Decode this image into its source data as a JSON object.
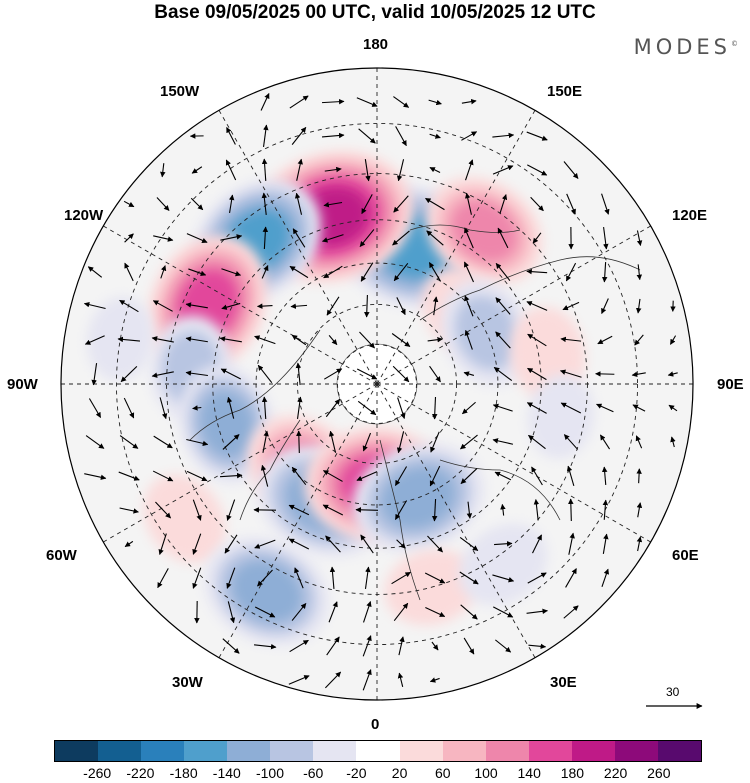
{
  "title": "Base 09/05/2025 00 UTC, valid 10/05/2025 12 UTC",
  "brand": "MODES",
  "brand_mark": "©",
  "longitude_labels": {
    "top": "180",
    "bottom": "0",
    "left": "90W",
    "right": "90E",
    "upper_left_1": "150W",
    "upper_left_2": "120W",
    "lower_left_1": "60W",
    "lower_left_2": "30W",
    "upper_right_1": "150E",
    "upper_right_2": "120E",
    "lower_right_1": "60E",
    "lower_right_2": "30E"
  },
  "reference_vector": {
    "value": "30"
  },
  "colorbar": {
    "colors": [
      "#0d3b5f",
      "#135f91",
      "#2a80bb",
      "#4f9fcc",
      "#8eaed6",
      "#b8c5e2",
      "#e5e5f2",
      "#ffffff",
      "#fbdbdb",
      "#f7b6c1",
      "#ee86ab",
      "#e2479b",
      "#bf1a87",
      "#8d0a7a",
      "#580a6e"
    ],
    "ticks": [
      "-260",
      "-220",
      "-180",
      "-140",
      "-100",
      "-60",
      "-20",
      "20",
      "60",
      "100",
      "140",
      "180",
      "220",
      "260"
    ]
  },
  "anomaly_blobs": [
    {
      "lon": 165,
      "lat": 55,
      "value": -180
    },
    {
      "lon": -165,
      "lat": 48,
      "value": 200
    },
    {
      "lon": -140,
      "lat": 45,
      "value": -150
    },
    {
      "lon": 145,
      "lat": 45,
      "value": 120
    },
    {
      "lon": -115,
      "lat": 45,
      "value": 160
    },
    {
      "lon": 130,
      "lat": 62,
      "value": 60
    },
    {
      "lon": 115,
      "lat": 60,
      "value": -90
    },
    {
      "lon": 100,
      "lat": 48,
      "value": 60
    },
    {
      "lon": -95,
      "lat": 45,
      "value": -80
    },
    {
      "lon": -75,
      "lat": 52,
      "value": -110
    },
    {
      "lon": -40,
      "lat": 62,
      "value": 120
    },
    {
      "lon": -25,
      "lat": 58,
      "value": -140
    },
    {
      "lon": 0,
      "lat": 65,
      "value": 160
    },
    {
      "lon": 20,
      "lat": 60,
      "value": -140
    },
    {
      "lon": -55,
      "lat": 35,
      "value": 60
    },
    {
      "lon": -28,
      "lat": 35,
      "value": -130
    },
    {
      "lon": 15,
      "lat": 40,
      "value": 60
    },
    {
      "lon": 35,
      "lat": 38,
      "value": -60
    },
    {
      "lon": 80,
      "lat": 45,
      "value": -40
    },
    {
      "lon": -100,
      "lat": 30,
      "value": -40
    }
  ]
}
